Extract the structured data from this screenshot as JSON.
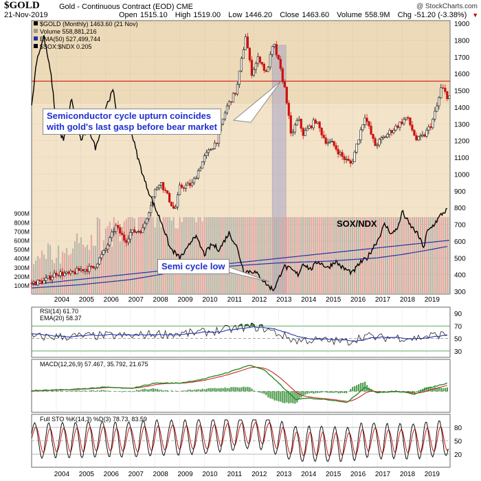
{
  "header": {
    "symbol": "$GOLD",
    "description": "Gold - Continuous Contract (EOD)  CME",
    "date": "21-Nov-2019",
    "open_label": "Open",
    "open": "1515.10",
    "high_label": "High",
    "high": "1519.00",
    "low_label": "Low",
    "low": "1446.20",
    "close_label": "Close",
    "close": "1463.60",
    "volume_label": "Volume",
    "volume": "558.9M",
    "chg_label": "Chg",
    "chg": "-51.20 (-3.38%)",
    "source": "@ StockCharts.com"
  },
  "annotations": {
    "upturn_line1": "Semiconductor cycle upturn coincides",
    "upturn_line2": "with gold's last gasp before bear market",
    "semi_low": "Semi cycle low",
    "sox_label": "SOX/NDX"
  },
  "colors": {
    "up": "#111111",
    "down": "#cc1111",
    "ema50": "#2233aa",
    "ratio": "#000000",
    "resistance": "#cc0000",
    "highlight": "#9a9ac8",
    "rsi_fill": "#2e8b2e",
    "macd_line": "#2a8a2a",
    "macd_signal": "#cc1111",
    "sto_k": "#111111",
    "sto_d": "#cc1111"
  },
  "chart_data": [
    {
      "type": "candlestick",
      "panel": "price",
      "legend": [
        "$GOLD (Monthly) 1463.60 (21 Nov)",
        "Volume 558,881,216",
        "EMA(50) 527,499,744",
        "$SOX:$NDX 0.205"
      ],
      "x_ticks": [
        "2004",
        "2005",
        "2006",
        "2007",
        "2008",
        "2009",
        "2010",
        "2011",
        "2012",
        "2013",
        "2014",
        "2015",
        "2016",
        "2017",
        "2018",
        "2019"
      ],
      "y_ticks": [
        300,
        400,
        500,
        600,
        700,
        800,
        900,
        1000,
        1100,
        1200,
        1300,
        1400,
        1500,
        1600,
        1700,
        1800,
        1900
      ],
      "ylim": [
        300,
        1900
      ],
      "volume_ticks": [
        "100M",
        "200M",
        "300M",
        "400M",
        "500M",
        "600M",
        "700M",
        "800M",
        "900M"
      ],
      "resistance_level": 1555,
      "gold_close_anchors": [
        [
          2003.0,
          350
        ],
        [
          2003.5,
          360
        ],
        [
          2004.0,
          410
        ],
        [
          2004.5,
          400
        ],
        [
          2005.0,
          430
        ],
        [
          2005.5,
          440
        ],
        [
          2006.0,
          550
        ],
        [
          2006.4,
          690
        ],
        [
          2006.8,
          600
        ],
        [
          2007.0,
          650
        ],
        [
          2007.5,
          670
        ],
        [
          2008.0,
          900
        ],
        [
          2008.2,
          960
        ],
        [
          2008.8,
          780
        ],
        [
          2009.0,
          920
        ],
        [
          2009.5,
          940
        ],
        [
          2010.0,
          1100
        ],
        [
          2010.5,
          1200
        ],
        [
          2010.9,
          1400
        ],
        [
          2011.3,
          1500
        ],
        [
          2011.67,
          1830
        ],
        [
          2011.9,
          1600
        ],
        [
          2012.2,
          1700
        ],
        [
          2012.5,
          1600
        ],
        [
          2012.8,
          1780
        ],
        [
          2013.0,
          1670
        ],
        [
          2013.3,
          1480
        ],
        [
          2013.5,
          1230
        ],
        [
          2013.8,
          1330
        ],
        [
          2014.0,
          1240
        ],
        [
          2014.5,
          1320
        ],
        [
          2014.9,
          1200
        ],
        [
          2015.2,
          1180
        ],
        [
          2015.6,
          1100
        ],
        [
          2015.95,
          1060
        ],
        [
          2016.5,
          1350
        ],
        [
          2016.9,
          1170
        ],
        [
          2017.5,
          1250
        ],
        [
          2017.9,
          1300
        ],
        [
          2018.2,
          1340
        ],
        [
          2018.6,
          1200
        ],
        [
          2018.9,
          1230
        ],
        [
          2019.2,
          1300
        ],
        [
          2019.45,
          1420
        ],
        [
          2019.6,
          1520
        ],
        [
          2019.85,
          1463
        ]
      ],
      "ema50_anchors": [
        [
          2003.0,
          320
        ],
        [
          2005.0,
          340
        ],
        [
          2007.0,
          370
        ],
        [
          2009.0,
          420
        ],
        [
          2011.0,
          450
        ],
        [
          2013.0,
          470
        ],
        [
          2015.0,
          480
        ],
        [
          2017.0,
          500
        ],
        [
          2018.0,
          520
        ],
        [
          2019.0,
          545
        ],
        [
          2019.9,
          570
        ]
      ],
      "ratio_anchors": [
        [
          2003.0,
          1400
        ],
        [
          2003.2,
          1680
        ],
        [
          2003.5,
          1820
        ],
        [
          2003.8,
          1580
        ],
        [
          2004.0,
          1300
        ],
        [
          2004.3,
          1200
        ],
        [
          2004.6,
          1450
        ],
        [
          2005.0,
          1200
        ],
        [
          2005.3,
          1280
        ],
        [
          2005.6,
          1150
        ],
        [
          2006.0,
          1400
        ],
        [
          2006.3,
          1500
        ],
        [
          2006.6,
          1230
        ],
        [
          2006.9,
          1320
        ],
        [
          2007.0,
          1280
        ],
        [
          2007.3,
          1100
        ],
        [
          2007.6,
          950
        ],
        [
          2008.0,
          800
        ],
        [
          2008.3,
          700
        ],
        [
          2008.6,
          560
        ],
        [
          2009.0,
          500
        ],
        [
          2009.3,
          550
        ],
        [
          2009.6,
          640
        ],
        [
          2010.0,
          520
        ],
        [
          2010.3,
          580
        ],
        [
          2010.6,
          550
        ],
        [
          2011.0,
          650
        ],
        [
          2011.3,
          570
        ],
        [
          2011.6,
          420
        ],
        [
          2012.0,
          420
        ],
        [
          2012.3,
          380
        ],
        [
          2012.6,
          330
        ],
        [
          2012.8,
          310
        ],
        [
          2013.0,
          370
        ],
        [
          2013.2,
          450
        ],
        [
          2013.5,
          430
        ],
        [
          2013.8,
          400
        ],
        [
          2014.0,
          470
        ],
        [
          2014.3,
          430
        ],
        [
          2014.6,
          480
        ],
        [
          2015.0,
          440
        ],
        [
          2015.3,
          480
        ],
        [
          2015.6,
          440
        ],
        [
          2016.0,
          410
        ],
        [
          2016.3,
          470
        ],
        [
          2016.6,
          500
        ],
        [
          2016.9,
          580
        ],
        [
          2017.0,
          600
        ],
        [
          2017.3,
          700
        ],
        [
          2017.6,
          640
        ],
        [
          2017.9,
          700
        ],
        [
          2018.0,
          780
        ],
        [
          2018.3,
          700
        ],
        [
          2018.6,
          650
        ],
        [
          2018.9,
          560
        ],
        [
          2019.0,
          650
        ],
        [
          2019.3,
          700
        ],
        [
          2019.6,
          760
        ],
        [
          2019.85,
          790
        ]
      ],
      "highlight_range": [
        2012.75,
        2013.3
      ]
    },
    {
      "type": "line",
      "panel": "rsi",
      "legend": [
        "RSI(14) 61.70",
        "EMA(20) 58.37"
      ],
      "y_ticks": [
        30,
        50,
        70,
        90
      ],
      "ylim": [
        20,
        100
      ],
      "levels": [
        30,
        70
      ]
    },
    {
      "type": "line",
      "panel": "macd",
      "legend": [
        "MACD(12,26,9) 57.467, 35.792, 21.675"
      ],
      "anchors": [
        [
          2003.0,
          5
        ],
        [
          2004.5,
          12
        ],
        [
          2006.0,
          30
        ],
        [
          2007.0,
          20
        ],
        [
          2008.0,
          60
        ],
        [
          2009.0,
          60
        ],
        [
          2010.0,
          90
        ],
        [
          2011.0,
          140
        ],
        [
          2011.8,
          190
        ],
        [
          2012.4,
          160
        ],
        [
          2013.0,
          60
        ],
        [
          2013.7,
          -60
        ],
        [
          2014.2,
          -50
        ],
        [
          2015.0,
          -60
        ],
        [
          2015.8,
          -80
        ],
        [
          2016.5,
          30
        ],
        [
          2017.0,
          -10
        ],
        [
          2017.8,
          0
        ],
        [
          2018.5,
          -20
        ],
        [
          2019.0,
          20
        ],
        [
          2019.85,
          60
        ]
      ]
    },
    {
      "type": "line",
      "panel": "sto",
      "legend": [
        "Full STO %K(14,3) %D(3) 78.73, 83.59"
      ],
      "y_ticks": [
        20,
        50,
        80
      ],
      "ylim": [
        0,
        100
      ],
      "levels": [
        20,
        50,
        80
      ]
    }
  ]
}
